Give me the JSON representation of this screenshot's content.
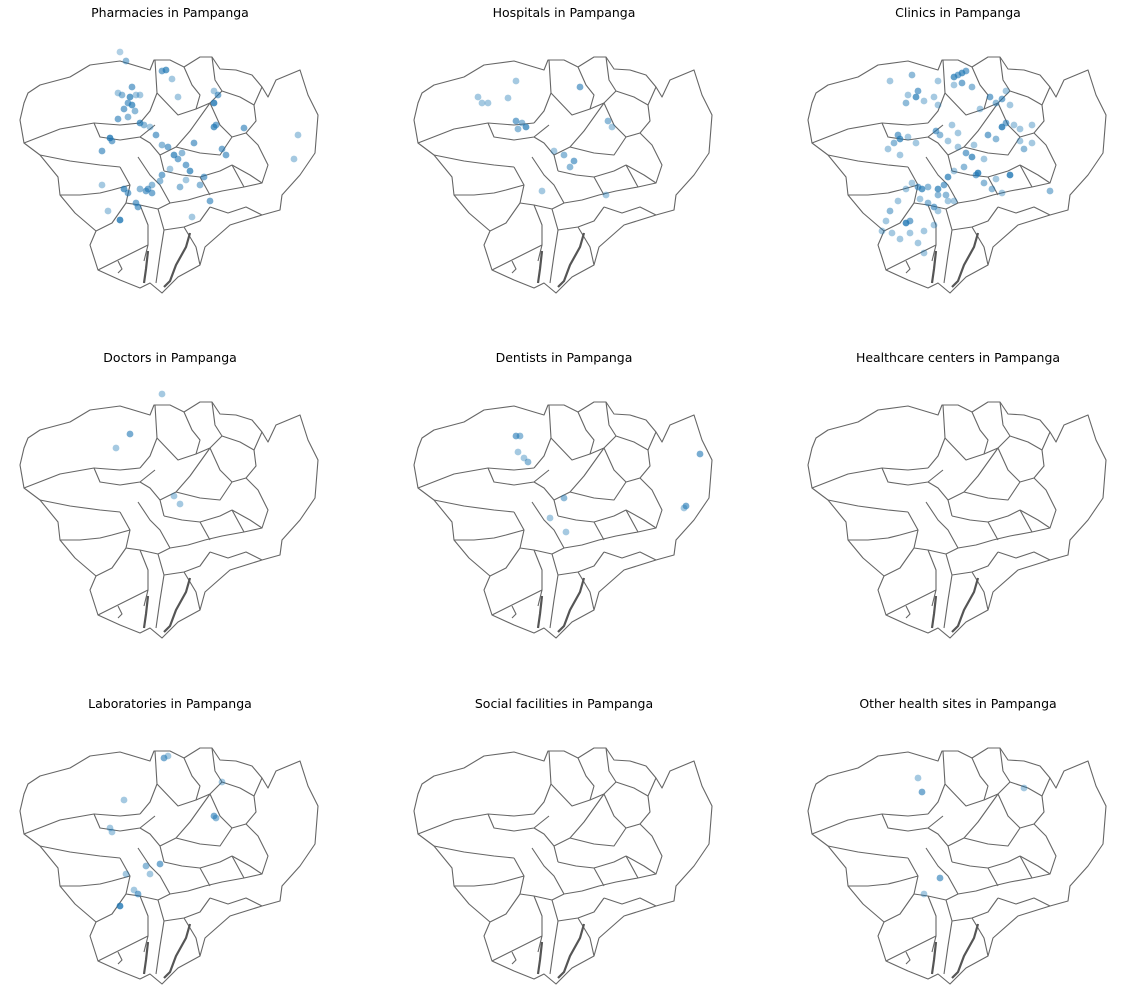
{
  "province": "Pampanga",
  "colors": {
    "boundary": "#666666",
    "marker": "#1f77b4"
  },
  "panels": [
    {
      "title": "Pharmacies in Pampanga",
      "marker_count": 70
    },
    {
      "title": "Hospitals in Pampanga",
      "marker_count": 16
    },
    {
      "title": "Clinics in Pampanga",
      "marker_count": 95
    },
    {
      "title": "Doctors in Pampanga",
      "marker_count": 6
    },
    {
      "title": "Dentists in Pampanga",
      "marker_count": 10
    },
    {
      "title": "Healthcare centers in Pampanga",
      "marker_count": 0
    },
    {
      "title": "Laboratories in Pampanga",
      "marker_count": 15
    },
    {
      "title": "Social facilities in Pampanga",
      "marker_count": 0
    },
    {
      "title": "Other health sites in Pampanga",
      "marker_count": 5
    }
  ]
}
